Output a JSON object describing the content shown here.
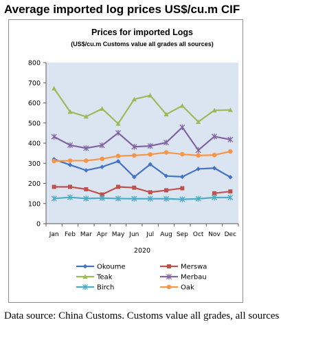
{
  "heading": "Average imported log prices US$/cu.m CIF",
  "source_note": "Data source: China Customs. Customs value all grades, all sources",
  "colors": {
    "plot_bg": "#dbe5f1",
    "Okoume": "#4472c4",
    "Merswa": "#c0504d",
    "Teak": "#9bbb59",
    "Merbau": "#8064a2",
    "Birch": "#4bacc6",
    "Oak": "#f79646"
  },
  "chart_data": {
    "type": "line",
    "title": "Prices for imported Logs",
    "subtitle": "(US$/cu.m Customs value all grades all sources)",
    "xlabel": "2020",
    "ylabel": "",
    "categories": [
      "Jan",
      "Feb",
      "Mar",
      "Apr",
      "May",
      "Jun",
      "Jul",
      "Aug",
      "Sep",
      "Oct",
      "Nov",
      "Dec"
    ],
    "ylim": [
      0,
      800
    ],
    "yticks": [
      0,
      100,
      200,
      300,
      400,
      500,
      600,
      700,
      800
    ],
    "grid": false,
    "legend": "bottom",
    "series": [
      {
        "name": "Okoume",
        "marker": "diamond",
        "values": [
          320,
          292,
          265,
          282,
          310,
          232,
          295,
          237,
          233,
          272,
          276,
          231
        ]
      },
      {
        "name": "Merswa",
        "marker": "square",
        "values": [
          183,
          183,
          171,
          145,
          183,
          179,
          156,
          166,
          176,
          null,
          151,
          160
        ]
      },
      {
        "name": "Teak",
        "marker": "triangle",
        "values": [
          672,
          556,
          532,
          571,
          497,
          618,
          637,
          543,
          586,
          506,
          563,
          565
        ]
      },
      {
        "name": "Merbau",
        "marker": "star",
        "values": [
          432,
          390,
          375,
          389,
          451,
          382,
          386,
          403,
          479,
          365,
          433,
          418
        ]
      },
      {
        "name": "Birch",
        "marker": "star",
        "values": [
          125,
          131,
          125,
          127,
          125,
          124,
          124,
          124,
          121,
          124,
          130,
          130
        ]
      },
      {
        "name": "Oak",
        "marker": "circle",
        "values": [
          311,
          313,
          313,
          322,
          336,
          339,
          344,
          354,
          345,
          339,
          341,
          359
        ]
      }
    ]
  }
}
